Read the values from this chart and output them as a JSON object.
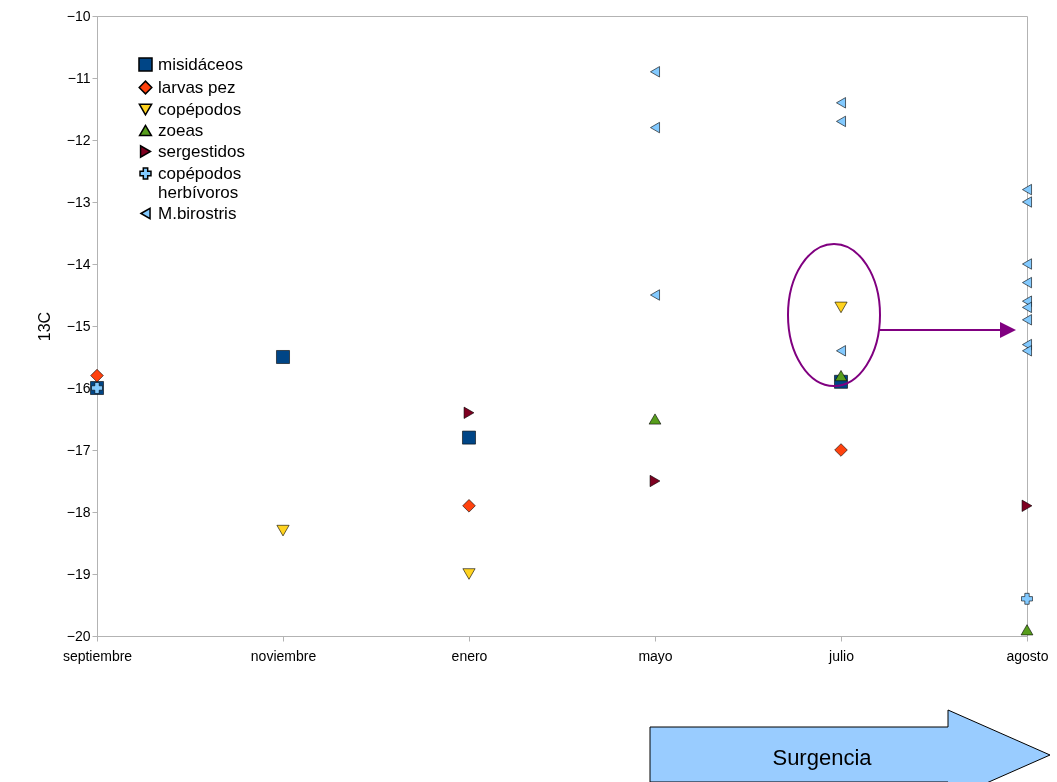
{
  "chart_data": {
    "type": "scatter",
    "ylabel": "13C",
    "categories": [
      "septiembre",
      "noviembre",
      "enero",
      "mayo",
      "julio",
      "agosto"
    ],
    "ylim": [
      -20,
      -10
    ],
    "yticks": [
      -10,
      -11,
      -12,
      -13,
      -14,
      -15,
      -16,
      -17,
      -18,
      -19,
      -20
    ],
    "legend": "top left",
    "grid": false,
    "series": [
      {
        "name": "misidáceos",
        "color": "#004586",
        "marker": "square",
        "x": [
          "septiembre",
          "noviembre",
          "enero",
          "julio"
        ],
        "values": [
          -16.0,
          -15.5,
          -16.8,
          -15.9
        ]
      },
      {
        "name": "larvas pez",
        "color": "#ff420e",
        "marker": "diamond",
        "x": [
          "septiembre",
          "enero",
          "julio"
        ],
        "values": [
          -15.8,
          -17.9,
          -17.0
        ]
      },
      {
        "name": "copépodos",
        "color": "#ffd320",
        "marker": "triangle-down",
        "x": [
          "noviembre",
          "enero",
          "julio"
        ],
        "values": [
          -18.3,
          -19.0,
          -14.7
        ]
      },
      {
        "name": "zoeas",
        "color": "#579d1c",
        "marker": "triangle",
        "x": [
          "mayo",
          "julio",
          "agosto"
        ],
        "values": [
          -16.5,
          -15.8,
          -19.9
        ]
      },
      {
        "name": "sergestidos",
        "color": "#7e0021",
        "marker": "triangle-right",
        "x": [
          "enero",
          "mayo",
          "agosto"
        ],
        "values": [
          -16.4,
          -17.5,
          -17.9
        ]
      },
      {
        "name": "copépodos herbívoros",
        "color": "#83caff",
        "marker": "cross",
        "x": [
          "septiembre",
          "agosto"
        ],
        "values": [
          -16.0,
          -19.4
        ]
      },
      {
        "name": "M.birostris",
        "color": "#83caff",
        "marker": "triangle-left",
        "x": [
          "mayo",
          "mayo",
          "mayo",
          "julio",
          "julio",
          "julio",
          "agosto",
          "agosto",
          "agosto",
          "agosto",
          "agosto",
          "agosto",
          "agosto",
          "agosto",
          "agosto"
        ],
        "values": [
          -10.9,
          -11.8,
          -14.5,
          -11.4,
          -11.7,
          -15.4,
          -12.8,
          -13.0,
          -14.0,
          -14.3,
          -14.6,
          -14.7,
          -14.9,
          -15.3,
          -15.4
        ]
      }
    ],
    "annotations": [
      "Surgencia"
    ]
  }
}
